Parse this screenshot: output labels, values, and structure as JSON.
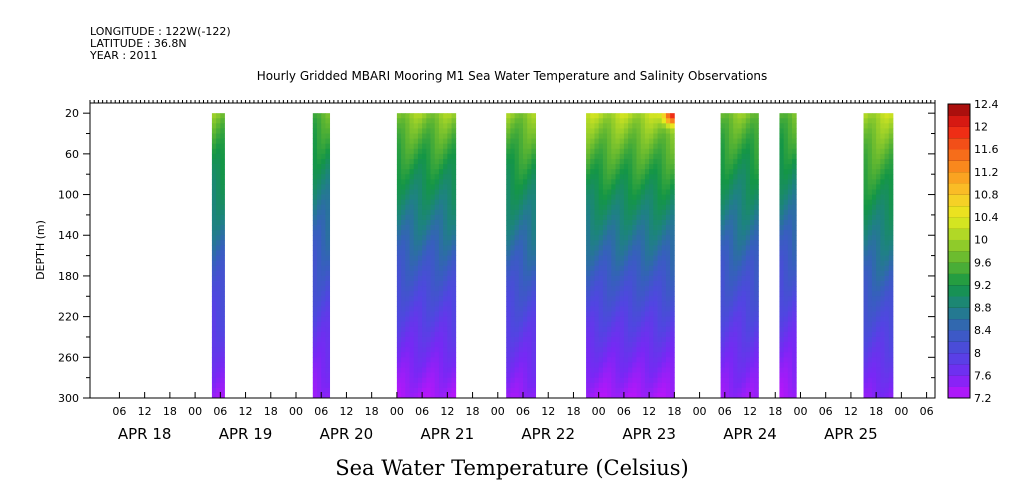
{
  "header": {
    "longitude": "LONGITUDE : 122W(-122)",
    "latitude": "LATITUDE : 36.8N",
    "year": "YEAR : 2011"
  },
  "chart_data": {
    "type": "heatmap",
    "title": "Hourly Gridded MBARI Mooring M1 Sea Water Temperature and Salinity Observations",
    "xlabel": "Sea Water Temperature (Celsius)",
    "ylabel": "DEPTH (m)",
    "y_inverted": true,
    "ylim": [
      300,
      10
    ],
    "y_ticks": [
      20,
      60,
      100,
      140,
      180,
      220,
      260,
      300
    ],
    "x_units": "hours since 2011-04-17 23:00",
    "xlim": [
      0,
      201
    ],
    "x_hour_ticks": [
      "06",
      "12",
      "18",
      "00",
      "06",
      "12",
      "18",
      "00",
      "06",
      "12",
      "18",
      "00",
      "06",
      "12",
      "18",
      "00",
      "06",
      "12",
      "18",
      "00",
      "06",
      "12",
      "18",
      "00",
      "06",
      "12",
      "18",
      "00",
      "06",
      "12",
      "18",
      "00",
      "06"
    ],
    "x_day_labels": [
      "APR 18",
      "APR 19",
      "APR 20",
      "APR 21",
      "APR 22",
      "APR 23",
      "APR 24",
      "APR 25"
    ],
    "colorbar": {
      "min": 7.2,
      "max": 12.4,
      "step": 0.2,
      "labels": [
        "12.4",
        "12",
        "11.6",
        "11.2",
        "10.8",
        "10.4",
        "10",
        "9.6",
        "9.2",
        "8.8",
        "8.4",
        "8",
        "7.6",
        "7.2"
      ]
    },
    "data_gaps_note": "",
    "segments": [
      {
        "start_hour": 29,
        "end_hour": 32,
        "surface_temp": 9.8,
        "bottom_temp": 7.4
      },
      {
        "start_hour": 53,
        "end_hour": 57,
        "surface_temp": 9.6,
        "bottom_temp": 7.4
      },
      {
        "start_hour": 73,
        "end_hour": 87,
        "surface_temp": 9.9,
        "bottom_temp": 7.3
      },
      {
        "start_hour": 99,
        "end_hour": 106,
        "surface_temp": 9.9,
        "bottom_temp": 7.4
      },
      {
        "start_hour": 118,
        "end_hour": 139,
        "surface_temp": 10.1,
        "bottom_temp": 7.3,
        "hotspot": {
          "hour": 138,
          "depth": 20,
          "temp": 11.9
        }
      },
      {
        "start_hour": 150,
        "end_hour": 159,
        "surface_temp": 9.8,
        "bottom_temp": 7.4
      },
      {
        "start_hour": 164,
        "end_hour": 168,
        "surface_temp": 9.7,
        "bottom_temp": 7.3
      },
      {
        "start_hour": 184,
        "end_hour": 191,
        "surface_temp": 10.1,
        "bottom_temp": 7.5
      }
    ]
  }
}
